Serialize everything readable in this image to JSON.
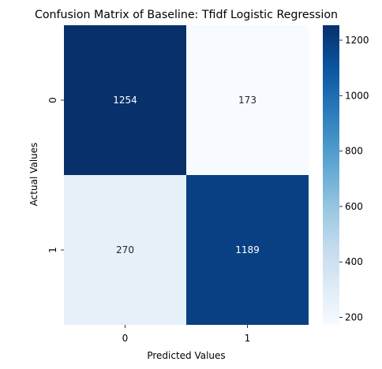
{
  "chart_data": {
    "type": "heatmap",
    "title": "Confusion Matrix of Baseline: Tfidf Logistic Regression",
    "xlabel": "Predicted Values",
    "ylabel": "Actual Values",
    "x_categories": [
      "0",
      "1"
    ],
    "y_categories": [
      "0",
      "1"
    ],
    "values": [
      [
        1254,
        173
      ],
      [
        270,
        1189
      ]
    ],
    "colormap": "Blues",
    "color_range": [
      173,
      1254
    ],
    "colorbar_ticks": [
      200,
      400,
      600,
      800,
      1000,
      1200
    ],
    "annotation_color_dark_cells": "#ffffff",
    "annotation_color_light_cells": "#262626"
  }
}
